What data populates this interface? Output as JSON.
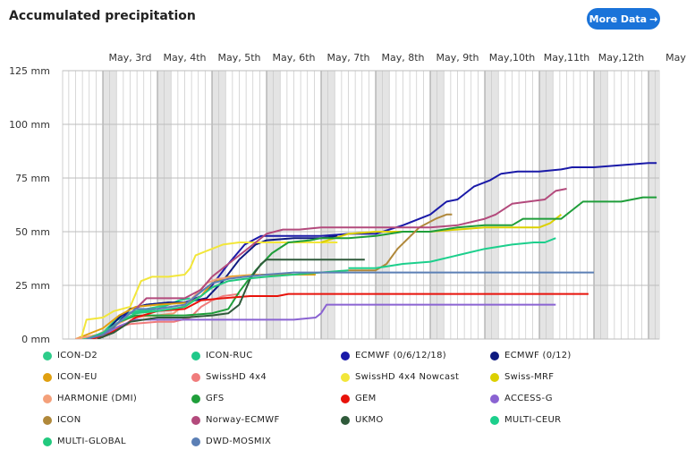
{
  "header": {
    "title": "Accumulated precipitation",
    "more_label": "More Data",
    "more_arrow": "→"
  },
  "chart_data": {
    "type": "line",
    "title": "Accumulated precipitation",
    "x_tick_labels": [
      "May, 3rd",
      "May, 4th",
      "May, 5th",
      "May, 6th",
      "May, 7th",
      "May, 8th",
      "May, 9th",
      "May,10th",
      "May,11th",
      "May,12th",
      "May"
    ],
    "y_tick_labels": [
      "0 mm",
      "25 mm",
      "50 mm",
      "75 mm",
      "100 mm",
      "125 mm"
    ],
    "x_range_days": [
      2.25,
      13.15
    ],
    "ylim": [
      0,
      125
    ],
    "grid": true,
    "legend_position": "bottom",
    "series": [
      {
        "name": "ICON-D2",
        "color": "#2ecc8a",
        "points": [
          [
            2.5,
            0
          ],
          [
            2.9,
            1
          ],
          [
            3.1,
            4
          ],
          [
            3.3,
            11
          ],
          [
            3.6,
            13
          ],
          [
            4.0,
            15
          ],
          [
            4.3,
            17
          ],
          [
            4.4,
            17
          ]
        ]
      },
      {
        "name": "ICON-RUC",
        "color": "#1fc98a",
        "points": [
          [
            2.7,
            0
          ],
          [
            3.0,
            3
          ],
          [
            3.2,
            8
          ],
          [
            3.5,
            12
          ],
          [
            4.0,
            14
          ],
          [
            4.4,
            18
          ],
          [
            4.6,
            19
          ]
        ]
      },
      {
        "name": "ECMWF (0/6/12/18)",
        "color": "#1a1aa8",
        "points": [
          [
            2.7,
            0
          ],
          [
            3.0,
            1
          ],
          [
            3.3,
            8
          ],
          [
            3.5,
            14
          ],
          [
            3.8,
            16
          ],
          [
            4.2,
            17
          ],
          [
            4.5,
            17
          ],
          [
            4.6,
            18
          ],
          [
            4.8,
            20
          ],
          [
            5.0,
            25
          ],
          [
            5.3,
            35
          ],
          [
            5.6,
            44
          ],
          [
            5.9,
            48
          ],
          [
            6.5,
            48
          ],
          [
            7.0,
            48
          ],
          [
            7.5,
            49
          ],
          [
            8.0,
            49
          ],
          [
            8.5,
            53
          ],
          [
            9.0,
            58
          ],
          [
            9.3,
            64
          ],
          [
            9.5,
            65
          ],
          [
            9.8,
            71
          ],
          [
            10.1,
            74
          ],
          [
            10.3,
            77
          ],
          [
            10.6,
            78
          ],
          [
            11.0,
            78
          ],
          [
            11.4,
            79
          ],
          [
            11.6,
            80
          ],
          [
            12.0,
            80
          ],
          [
            12.5,
            81
          ],
          [
            13.0,
            82
          ],
          [
            13.15,
            82
          ]
        ]
      },
      {
        "name": "ECMWF (0/12)",
        "color": "#0e1a80",
        "points": [
          [
            2.7,
            0
          ],
          [
            3.0,
            2
          ],
          [
            3.3,
            10
          ],
          [
            3.5,
            14
          ],
          [
            3.8,
            16
          ],
          [
            4.2,
            17
          ],
          [
            4.5,
            17
          ],
          [
            4.9,
            19
          ],
          [
            5.2,
            27
          ],
          [
            5.5,
            37
          ],
          [
            5.8,
            44
          ],
          [
            6.0,
            46
          ],
          [
            6.5,
            47
          ],
          [
            7.0,
            47
          ],
          [
            7.3,
            48
          ]
        ]
      },
      {
        "name": "ICON-EU",
        "color": "#e0a010",
        "points": [
          [
            2.5,
            0
          ],
          [
            3.0,
            5
          ],
          [
            3.3,
            11
          ],
          [
            3.6,
            15
          ],
          [
            4.0,
            16
          ],
          [
            4.6,
            17
          ],
          [
            4.8,
            20
          ],
          [
            5.0,
            26
          ],
          [
            5.3,
            29
          ],
          [
            5.8,
            30
          ],
          [
            6.2,
            30
          ],
          [
            6.5,
            30
          ],
          [
            6.9,
            30
          ]
        ]
      },
      {
        "name": "SwissHD 4x4",
        "color": "#f07c7c",
        "points": [
          [
            2.5,
            0
          ],
          [
            2.9,
            2
          ],
          [
            3.2,
            5
          ],
          [
            3.5,
            7
          ],
          [
            4.0,
            8
          ],
          [
            4.3,
            8
          ],
          [
            4.6,
            10
          ],
          [
            4.8,
            15
          ],
          [
            5.0,
            18
          ],
          [
            5.2,
            20
          ],
          [
            5.5,
            21
          ]
        ]
      },
      {
        "name": "SwissHD 4x4 Nowcast",
        "color": "#f2e63a",
        "points": [
          [
            2.6,
            0
          ],
          [
            2.7,
            9
          ],
          [
            3.0,
            10
          ],
          [
            3.2,
            13
          ],
          [
            3.5,
            15
          ],
          [
            3.7,
            27
          ],
          [
            3.9,
            29
          ],
          [
            4.2,
            29
          ],
          [
            4.5,
            30
          ],
          [
            4.6,
            33
          ],
          [
            4.7,
            39
          ],
          [
            4.9,
            41
          ],
          [
            5.0,
            42
          ],
          [
            5.2,
            44
          ],
          [
            5.5,
            45
          ],
          [
            6.0,
            45
          ],
          [
            7.0,
            45
          ],
          [
            7.3,
            45
          ]
        ]
      },
      {
        "name": "Swiss-MRF",
        "color": "#dcd000",
        "points": [
          [
            7.0,
            45
          ],
          [
            7.5,
            49
          ],
          [
            8.0,
            50
          ],
          [
            9.0,
            50
          ],
          [
            9.5,
            51
          ],
          [
            10.0,
            52
          ],
          [
            10.5,
            52
          ],
          [
            11.0,
            52
          ],
          [
            11.2,
            54
          ],
          [
            11.4,
            58
          ]
        ]
      },
      {
        "name": "HARMONIE (DMI)",
        "color": "#f4a07a",
        "points": [
          [
            2.5,
            0
          ],
          [
            2.9,
            2
          ],
          [
            3.2,
            6
          ],
          [
            3.5,
            10
          ],
          [
            4.0,
            11
          ],
          [
            4.3,
            12
          ],
          [
            4.6,
            18
          ],
          [
            4.9,
            26
          ],
          [
            5.1,
            28
          ],
          [
            5.5,
            29
          ],
          [
            5.9,
            30
          ]
        ]
      },
      {
        "name": "GFS",
        "color": "#1f9e3a",
        "points": [
          [
            2.7,
            0
          ],
          [
            3.0,
            1
          ],
          [
            3.3,
            8
          ],
          [
            3.6,
            11
          ],
          [
            4.0,
            11
          ],
          [
            4.5,
            11
          ],
          [
            5.0,
            12
          ],
          [
            5.3,
            14
          ],
          [
            5.5,
            22
          ],
          [
            5.8,
            32
          ],
          [
            6.1,
            40
          ],
          [
            6.4,
            45
          ],
          [
            6.8,
            46
          ],
          [
            7.0,
            47
          ],
          [
            7.5,
            47
          ],
          [
            8.0,
            48
          ],
          [
            8.5,
            50
          ],
          [
            9.0,
            50
          ],
          [
            9.5,
            52
          ],
          [
            10.0,
            53
          ],
          [
            10.5,
            53
          ],
          [
            10.7,
            56
          ],
          [
            11.0,
            56
          ],
          [
            11.4,
            56
          ],
          [
            11.6,
            60
          ],
          [
            11.8,
            64
          ],
          [
            12.5,
            64
          ],
          [
            12.9,
            66
          ],
          [
            13.15,
            66
          ]
        ]
      },
      {
        "name": "GEM",
        "color": "#e8120a",
        "points": [
          [
            2.7,
            0
          ],
          [
            3.0,
            1
          ],
          [
            3.3,
            5
          ],
          [
            3.6,
            10
          ],
          [
            4.0,
            13
          ],
          [
            4.5,
            14
          ],
          [
            4.8,
            18
          ],
          [
            5.2,
            19
          ],
          [
            5.7,
            20
          ],
          [
            6.2,
            20
          ],
          [
            6.4,
            21
          ],
          [
            6.7,
            21
          ],
          [
            7.5,
            21
          ],
          [
            8.5,
            21
          ],
          [
            9.5,
            21
          ],
          [
            10.5,
            21
          ],
          [
            11.5,
            21
          ],
          [
            11.9,
            21
          ]
        ]
      },
      {
        "name": "ACCESS-G",
        "color": "#8a63d2",
        "points": [
          [
            2.7,
            0
          ],
          [
            3.0,
            2
          ],
          [
            3.3,
            6
          ],
          [
            3.6,
            9
          ],
          [
            4.0,
            9
          ],
          [
            4.5,
            9
          ],
          [
            5.0,
            9
          ],
          [
            5.5,
            9
          ],
          [
            6.0,
            9
          ],
          [
            6.5,
            9
          ],
          [
            6.9,
            10
          ],
          [
            7.0,
            12
          ],
          [
            7.1,
            16
          ],
          [
            7.5,
            16
          ],
          [
            8.5,
            16
          ],
          [
            9.5,
            16
          ],
          [
            10.5,
            16
          ],
          [
            11.3,
            16
          ]
        ]
      },
      {
        "name": "ICON",
        "color": "#b0883a",
        "points": [
          [
            7.5,
            32
          ],
          [
            8.0,
            32
          ],
          [
            8.2,
            35
          ],
          [
            8.4,
            42
          ],
          [
            8.6,
            47
          ],
          [
            8.8,
            52
          ],
          [
            9.1,
            56
          ],
          [
            9.3,
            58
          ],
          [
            9.4,
            58
          ]
        ]
      },
      {
        "name": "Norway-ECMWF",
        "color": "#b34a7c",
        "points": [
          [
            2.7,
            0
          ],
          [
            3.0,
            2
          ],
          [
            3.3,
            8
          ],
          [
            3.6,
            14
          ],
          [
            3.8,
            19
          ],
          [
            4.2,
            19
          ],
          [
            4.5,
            19
          ],
          [
            4.8,
            23
          ],
          [
            5.0,
            29
          ],
          [
            5.3,
            35
          ],
          [
            5.6,
            41
          ],
          [
            5.8,
            45
          ],
          [
            6.0,
            49
          ],
          [
            6.3,
            51
          ],
          [
            6.6,
            51
          ],
          [
            7.0,
            52
          ],
          [
            7.5,
            52
          ],
          [
            8.0,
            52
          ],
          [
            8.5,
            52
          ],
          [
            9.0,
            52
          ],
          [
            9.5,
            53
          ],
          [
            10.0,
            56
          ],
          [
            10.2,
            58
          ],
          [
            10.5,
            63
          ],
          [
            10.8,
            64
          ],
          [
            11.1,
            65
          ],
          [
            11.3,
            69
          ],
          [
            11.5,
            70
          ]
        ]
      },
      {
        "name": "UKMO",
        "color": "#2f5a3a",
        "points": [
          [
            2.9,
            0
          ],
          [
            3.2,
            3
          ],
          [
            3.5,
            8
          ],
          [
            4.0,
            10
          ],
          [
            4.5,
            10
          ],
          [
            5.0,
            11
          ],
          [
            5.3,
            12
          ],
          [
            5.5,
            16
          ],
          [
            5.7,
            28
          ],
          [
            5.9,
            35
          ],
          [
            6.0,
            37
          ],
          [
            6.5,
            37
          ],
          [
            7.0,
            37
          ],
          [
            7.5,
            37
          ],
          [
            7.8,
            37
          ]
        ]
      },
      {
        "name": "MULTI-CEUR",
        "color": "#1ccf8c",
        "points": [
          [
            7.5,
            33
          ],
          [
            8.0,
            33
          ],
          [
            8.5,
            35
          ],
          [
            9.0,
            36
          ],
          [
            9.5,
            39
          ],
          [
            10.0,
            42
          ],
          [
            10.5,
            44
          ],
          [
            10.9,
            45
          ],
          [
            11.1,
            45
          ],
          [
            11.3,
            47
          ]
        ]
      },
      {
        "name": "MULTI-GLOBAL",
        "color": "#22c97e",
        "points": [
          [
            2.7,
            0
          ],
          [
            3.0,
            3
          ],
          [
            3.3,
            8
          ],
          [
            3.6,
            12
          ],
          [
            4.0,
            13
          ],
          [
            4.5,
            15
          ],
          [
            4.8,
            20
          ],
          [
            5.0,
            24
          ],
          [
            5.3,
            27
          ],
          [
            5.6,
            28
          ],
          [
            6.0,
            29
          ],
          [
            6.5,
            30
          ],
          [
            7.0,
            31
          ],
          [
            7.5,
            32
          ]
        ]
      },
      {
        "name": "DWD-MOSMIX",
        "color": "#5b7fb5",
        "points": [
          [
            2.7,
            0
          ],
          [
            3.0,
            2
          ],
          [
            3.3,
            8
          ],
          [
            3.6,
            14
          ],
          [
            4.0,
            14
          ],
          [
            4.5,
            16
          ],
          [
            4.8,
            22
          ],
          [
            5.0,
            26
          ],
          [
            5.3,
            28
          ],
          [
            5.6,
            29
          ],
          [
            6.0,
            30
          ],
          [
            6.5,
            31
          ],
          [
            7.0,
            31
          ],
          [
            7.5,
            31
          ],
          [
            8.0,
            31
          ],
          [
            9.0,
            31
          ],
          [
            10.0,
            31
          ],
          [
            11.0,
            31
          ],
          [
            12.0,
            31
          ]
        ]
      }
    ]
  },
  "legend_rows": [
    [
      "ICON-D2",
      "ICON-RUC",
      "ECMWF (0/6/12/18)",
      "ECMWF (0/12)"
    ],
    [
      "ICON-EU",
      "SwissHD 4x4",
      "SwissHD 4x4 Nowcast",
      "Swiss-MRF"
    ],
    [
      "HARMONIE (DMI)",
      "GFS",
      "GEM",
      "ACCESS-G"
    ],
    [
      "ICON",
      "Norway-ECMWF",
      "UKMO",
      "MULTI-CEUR"
    ],
    [
      "MULTI-GLOBAL",
      "DWD-MOSMIX"
    ]
  ]
}
